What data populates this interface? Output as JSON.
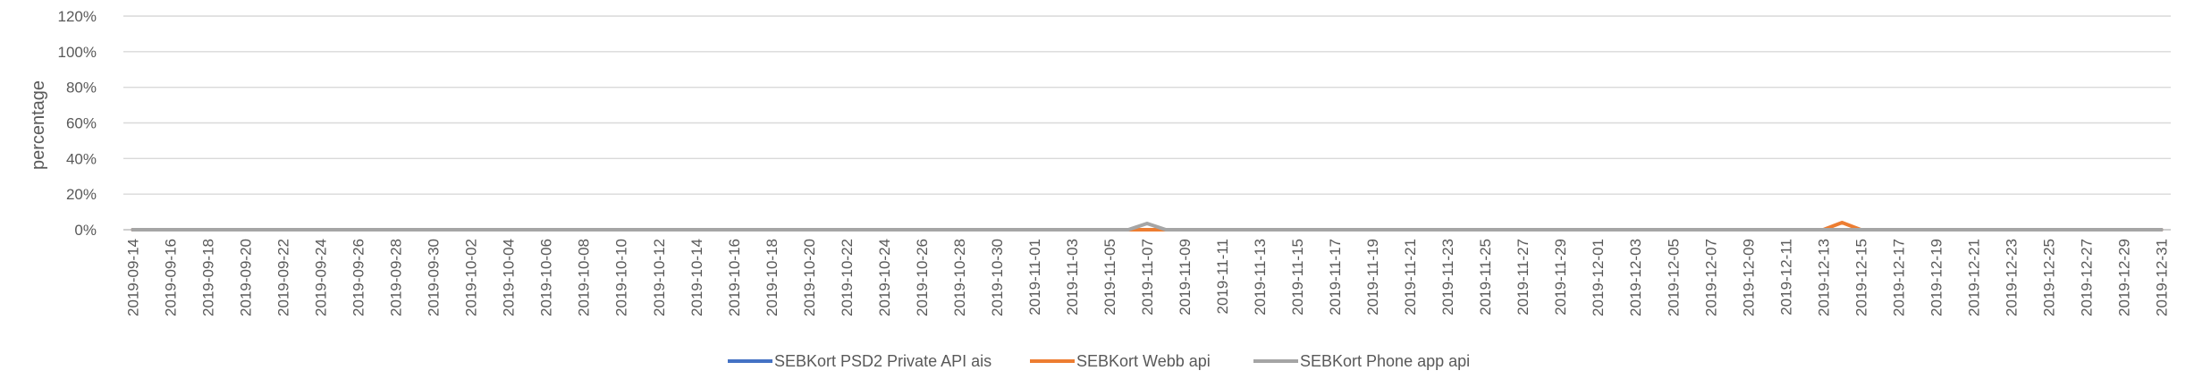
{
  "chart_data": {
    "type": "line",
    "title": "",
    "xlabel": "",
    "ylabel": "percentage",
    "ylim": [
      0,
      1.2
    ],
    "yticks": [
      0,
      0.2,
      0.4,
      0.6,
      0.8,
      1.0,
      1.2
    ],
    "ytick_labels": [
      "0%",
      "20%",
      "40%",
      "60%",
      "80%",
      "100%",
      "120%"
    ],
    "grid": true,
    "legend_position": "bottom",
    "x_start": "2019-09-14",
    "x_end": "2019-12-31",
    "x_tick_labels": [
      "2019-09-14",
      "2019-09-16",
      "2019-09-18",
      "2019-09-20",
      "2019-09-22",
      "2019-09-24",
      "2019-09-26",
      "2019-09-28",
      "2019-09-30",
      "2019-10-02",
      "2019-10-04",
      "2019-10-06",
      "2019-10-08",
      "2019-10-10",
      "2019-10-12",
      "2019-10-14",
      "2019-10-16",
      "2019-10-18",
      "2019-10-20",
      "2019-10-22",
      "2019-10-24",
      "2019-10-26",
      "2019-10-28",
      "2019-10-30",
      "2019-11-01",
      "2019-11-03",
      "2019-11-05",
      "2019-11-07",
      "2019-11-09",
      "2019-11-11",
      "2019-11-13",
      "2019-11-15",
      "2019-11-17",
      "2019-11-19",
      "2019-11-21",
      "2019-11-23",
      "2019-11-25",
      "2019-11-27",
      "2019-11-29",
      "2019-12-01",
      "2019-12-03",
      "2019-12-05",
      "2019-12-07",
      "2019-12-09",
      "2019-12-11",
      "2019-12-13",
      "2019-12-15",
      "2019-12-17",
      "2019-12-19",
      "2019-12-21",
      "2019-12-23",
      "2019-12-25",
      "2019-12-27",
      "2019-12-29",
      "2019-12-31"
    ],
    "series": [
      {
        "name": "SEBKort PSD2 Private API ais",
        "color": "#4472C4",
        "default": 0,
        "points": []
      },
      {
        "name": "SEBKort Webb api",
        "color": "#ED7D31",
        "default": 0,
        "points": [
          {
            "x": "2019-12-14",
            "y": 0.04
          }
        ]
      },
      {
        "name": "SEBKort Phone app api",
        "color": "#A5A5A5",
        "default": 0,
        "points": [
          {
            "x": "2019-11-07",
            "y": 0.035
          }
        ]
      }
    ]
  }
}
